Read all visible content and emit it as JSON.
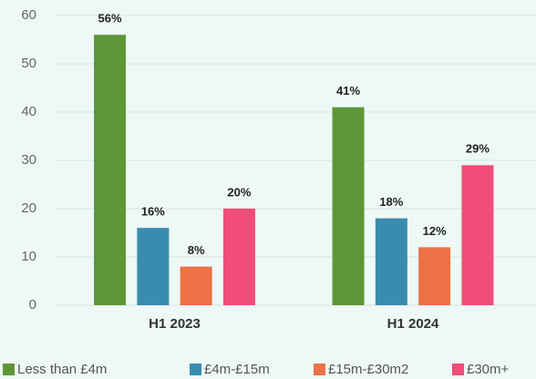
{
  "chart_data": {
    "type": "bar",
    "categories": [
      "H1 2023",
      "H1 2024"
    ],
    "series": [
      {
        "name": "Less than £4m",
        "color": "#5d9637",
        "values": [
          56,
          41
        ],
        "value_labels": [
          "56%",
          "41%"
        ]
      },
      {
        "name": "£4m-£15m",
        "color": "#3a8cae",
        "values": [
          16,
          18
        ],
        "value_labels": [
          "16%",
          "18%"
        ]
      },
      {
        "name": "£15m-£30m2",
        "color": "#ec7145",
        "values": [
          8,
          12
        ],
        "value_labels": [
          "8%",
          "12%"
        ]
      },
      {
        "name": "£30m+",
        "color": "#f04e78",
        "values": [
          20,
          29
        ],
        "value_labels": [
          "20%",
          "29%"
        ]
      }
    ],
    "ylim": [
      0,
      60
    ],
    "yticks": [
      0,
      10,
      20,
      30,
      40,
      50,
      60
    ],
    "grid": true,
    "legend": "bottom"
  }
}
